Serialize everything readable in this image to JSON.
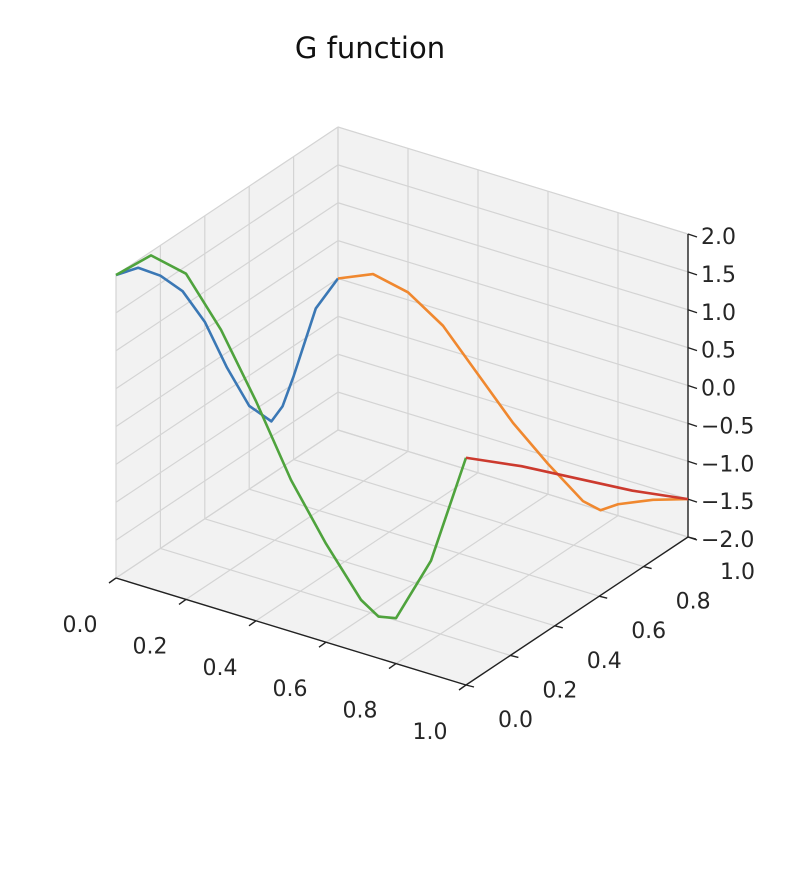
{
  "chart_data": {
    "type": "line",
    "projection": "3d",
    "title": "G function",
    "xlabel": "",
    "ylabel": "",
    "zlabel": "",
    "xlim": [
      0,
      1
    ],
    "ylim": [
      0,
      1
    ],
    "zlim": [
      -2,
      2
    ],
    "grid": true,
    "pane_color": "#f2f2f2",
    "grid_color": "#d4d4d4",
    "x_ticks": [
      "0.0",
      "0.2",
      "0.4",
      "0.6",
      "0.8",
      "1.0"
    ],
    "y_ticks": [
      "0.0",
      "0.2",
      "0.4",
      "0.6",
      "0.8",
      "1.0"
    ],
    "z_ticks": [
      "−2.0",
      "−1.5",
      "−1.0",
      "−0.5",
      "0.0",
      "0.5",
      "1.0",
      "1.5",
      "2.0"
    ],
    "series": [
      {
        "color": "#3b78b5",
        "points": [
          [
            0.0,
            1.0,
            0.0
          ],
          [
            0.0,
            0.9,
            -0.2
          ],
          [
            0.0,
            0.8,
            -0.9
          ],
          [
            0.0,
            0.75,
            -1.2
          ],
          [
            0.0,
            0.7,
            -1.3
          ],
          [
            0.0,
            0.6,
            -0.9
          ],
          [
            0.0,
            0.5,
            -0.2
          ],
          [
            0.0,
            0.4,
            0.6
          ],
          [
            0.0,
            0.3,
            1.2
          ],
          [
            0.0,
            0.2,
            1.6
          ],
          [
            0.0,
            0.1,
            1.9
          ],
          [
            0.0,
            0.0,
            2.0
          ]
        ]
      },
      {
        "color": "#f0882f",
        "points": [
          [
            0.0,
            1.0,
            0.0
          ],
          [
            0.1,
            1.0,
            0.2
          ],
          [
            0.2,
            1.0,
            0.1
          ],
          [
            0.3,
            1.0,
            -0.2
          ],
          [
            0.4,
            1.0,
            -0.7
          ],
          [
            0.5,
            1.0,
            -1.2
          ],
          [
            0.6,
            1.0,
            -1.6
          ],
          [
            0.7,
            1.0,
            -1.95
          ],
          [
            0.75,
            1.0,
            -2.0
          ],
          [
            0.8,
            1.0,
            -1.85
          ],
          [
            0.9,
            1.0,
            -1.65
          ],
          [
            1.0,
            1.0,
            -1.5
          ]
        ]
      },
      {
        "color": "#4fa33d",
        "points": [
          [
            0.0,
            0.0,
            2.0
          ],
          [
            0.1,
            0.0,
            2.4
          ],
          [
            0.2,
            0.0,
            2.3
          ],
          [
            0.3,
            0.0,
            1.7
          ],
          [
            0.4,
            0.0,
            0.9
          ],
          [
            0.5,
            0.0,
            0.0
          ],
          [
            0.6,
            0.0,
            -0.7
          ],
          [
            0.7,
            0.0,
            -1.3
          ],
          [
            0.75,
            0.0,
            -1.45
          ],
          [
            0.8,
            0.0,
            -1.4
          ],
          [
            0.9,
            0.0,
            -0.5
          ],
          [
            1.0,
            0.0,
            1.0
          ]
        ]
      },
      {
        "color": "#cc3a2e",
        "points": [
          [
            1.0,
            1.0,
            -1.5
          ],
          [
            1.0,
            0.75,
            -0.9
          ],
          [
            1.0,
            0.5,
            -0.25
          ],
          [
            1.0,
            0.25,
            0.4
          ],
          [
            1.0,
            0.0,
            1.0
          ]
        ]
      }
    ]
  }
}
